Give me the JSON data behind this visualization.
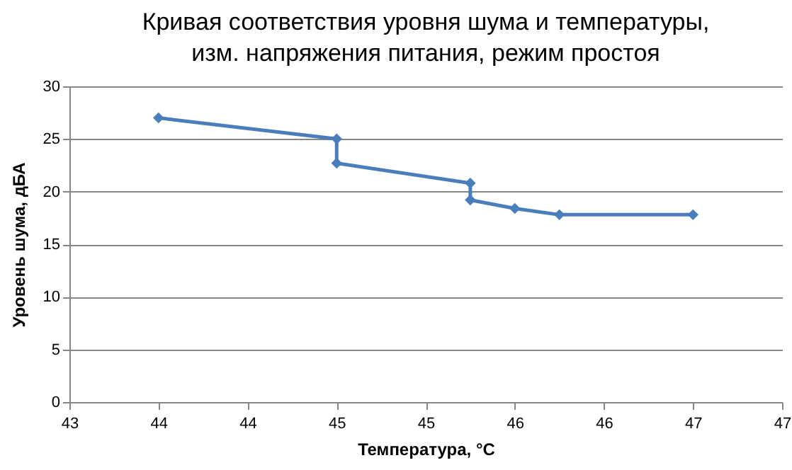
{
  "chart_data": {
    "type": "line",
    "title": "Кривая соответствия уровня шума и температуры,\nизм. напряжения питания, режим простоя",
    "xlabel": "Температура, °C",
    "ylabel": "Уровень шума, дБА",
    "x": [
      43.5,
      44.5,
      44.5,
      45.25,
      45.25,
      45.5,
      45.75,
      46.5
    ],
    "series": [
      {
        "color": "#4a7ebb",
        "values": [
          27,
          25,
          22.7,
          20.8,
          19.2,
          18.4,
          17.8,
          17.8
        ]
      }
    ],
    "xlim": [
      43,
      47
    ],
    "xticks": [
      43,
      {
        "value": 43.5,
        "label": "44"
      },
      44,
      {
        "value": 44.5,
        "label": "45"
      },
      45,
      {
        "value": 45.5,
        "label": "46"
      },
      46,
      {
        "value": 46.5,
        "label": "47"
      },
      47
    ],
    "ylim": [
      0,
      30
    ],
    "yticks": [
      0,
      5,
      10,
      15,
      20,
      25,
      30
    ],
    "grid": "y",
    "marker": "diamond",
    "line_style": "solid"
  }
}
